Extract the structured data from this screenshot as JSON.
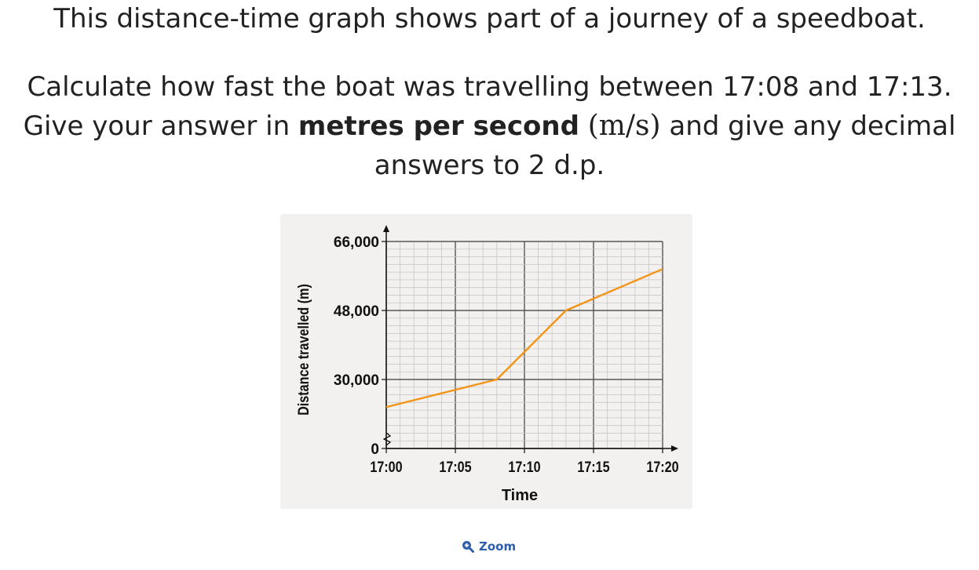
{
  "question": {
    "line1": "This distance-time graph shows part of a journey of a speedboat.",
    "line2": "Calculate how fast the boat was travelling between 17:08 and 17:13.",
    "line3_pre": "Give your answer in ",
    "line3_bold": "metres per second",
    "line3_unit": "(m/s)",
    "line3_post": " and give any decimal answers to 2 d.p."
  },
  "zoom_label": "Zoom",
  "colors": {
    "line": "#f39416",
    "grid_minor": "#c8c8c8",
    "grid_major": "#555555",
    "card": "#f2f1ef",
    "link": "#2b5fad"
  },
  "chart_data": {
    "type": "line",
    "title": "",
    "xlabel": "Time",
    "ylabel": "Distance travelled (m)",
    "x_ticks": [
      "17:00",
      "17:05",
      "17:10",
      "17:15",
      "17:20"
    ],
    "y_ticks": [
      "0",
      "30,000",
      "48,000",
      "66,000"
    ],
    "x_minutes_range": [
      0,
      20
    ],
    "y_axis_break": true,
    "y_break_value": 12000,
    "ylim": [
      12000,
      66000
    ],
    "grid": true,
    "series": [
      {
        "name": "speedboat",
        "x_minutes": [
          0,
          8,
          13,
          20
        ],
        "x_labels": [
          "17:00",
          "17:08",
          "17:13",
          "17:20"
        ],
        "y": [
          22800,
          30000,
          48000,
          58800
        ]
      }
    ]
  }
}
